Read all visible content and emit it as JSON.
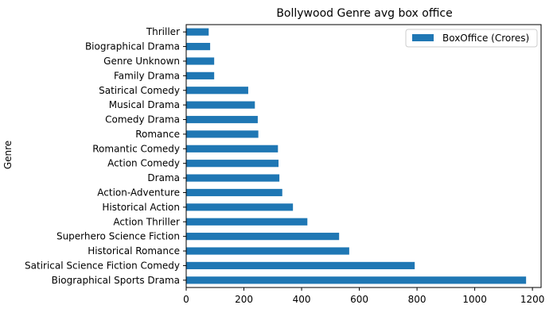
{
  "chart_data": {
    "type": "bar",
    "orientation": "horizontal",
    "title": "Bollywood Genre avg box office",
    "xlabel": "",
    "ylabel": "Genre",
    "xlim": [
      0,
      1230
    ],
    "xticks": [
      0,
      200,
      400,
      600,
      800,
      1000,
      1200
    ],
    "grid": false,
    "legend_position": "top-right",
    "categories": [
      "Biographical Sports Drama",
      "Satirical Science Fiction Comedy",
      "Historical Romance",
      "Superhero Science Fiction",
      "Action Thriller",
      "Historical Action",
      "Action-Adventure",
      "Drama",
      "Action Comedy",
      "Romantic Comedy",
      "Romance",
      "Comedy Drama",
      "Musical Drama",
      "Satirical Comedy",
      "Family Drama",
      "Genre Unknown",
      "Biographical Drama",
      "Thriller"
    ],
    "series": [
      {
        "name": "BoxOffice (Crores)",
        "color": "#1f77b4",
        "values": [
          1178,
          792,
          565,
          530,
          420,
          370,
          333,
          323,
          320,
          318,
          250,
          248,
          238,
          215,
          97,
          97,
          83,
          78
        ]
      }
    ]
  }
}
